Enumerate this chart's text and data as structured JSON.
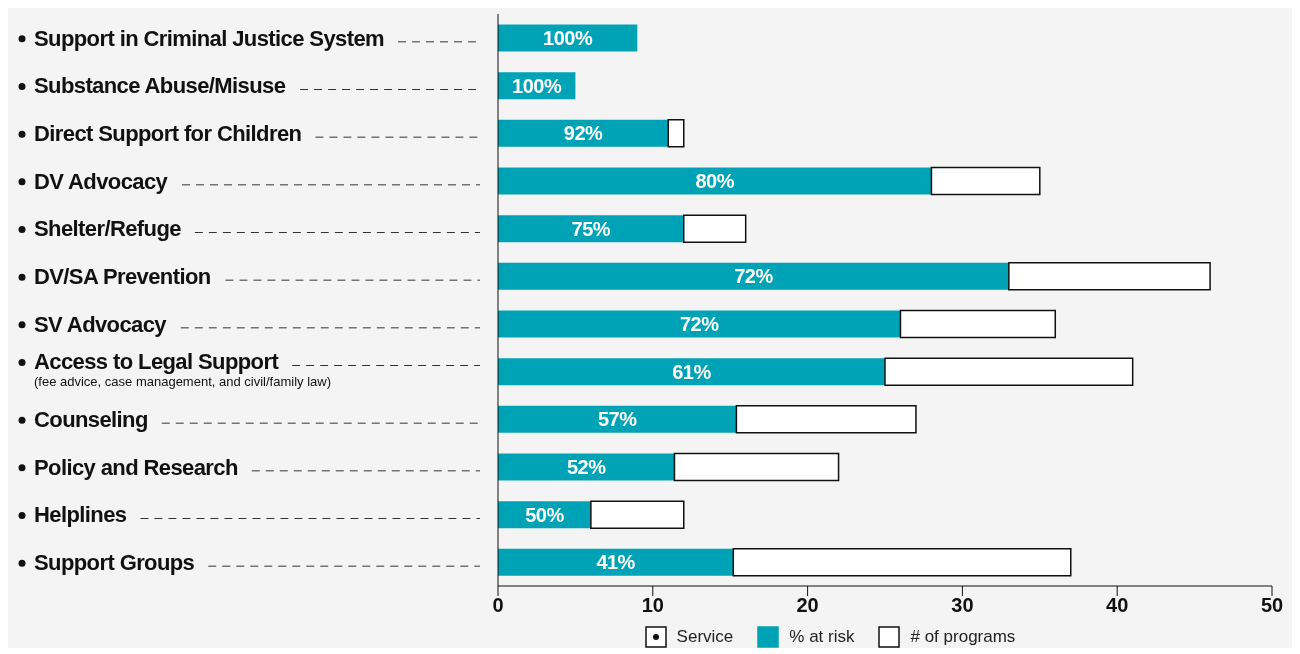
{
  "chart_data": {
    "type": "bar",
    "orientation": "horizontal",
    "stacked": true,
    "categories": [
      "Support in Criminal Justice System",
      "Substance Abuse/Misuse",
      "Direct Support for Children",
      "DV Advocacy",
      "Shelter/Refuge",
      "DV/SA Prevention",
      "SV Advocacy",
      "Access to Legal Support\n(fee advice, case management, and civil/family law)",
      "Counseling",
      "Policy and Research",
      "Helplines",
      "Support Groups"
    ],
    "series": [
      {
        "name": "% at risk",
        "color": "#00a3b5",
        "values": [
          9,
          5,
          11,
          28,
          12,
          33,
          26,
          25,
          15.4,
          11.4,
          6,
          15.2
        ]
      },
      {
        "name": "# of programs",
        "color": "#ffffff",
        "values": [
          0,
          0,
          1,
          7,
          4,
          13,
          10,
          16,
          11.6,
          10.6,
          6,
          21.8
        ]
      }
    ],
    "xlim": [
      0,
      50
    ],
    "xticks": [
      0,
      10,
      20,
      30,
      40,
      50
    ],
    "legend": "bottom",
    "annotations": [
      "Service",
      "100%",
      "100%",
      "92%",
      "80%",
      "75%",
      "72%",
      "72%",
      "61%",
      "57%",
      "52%",
      "50%",
      "41%"
    ]
  }
}
